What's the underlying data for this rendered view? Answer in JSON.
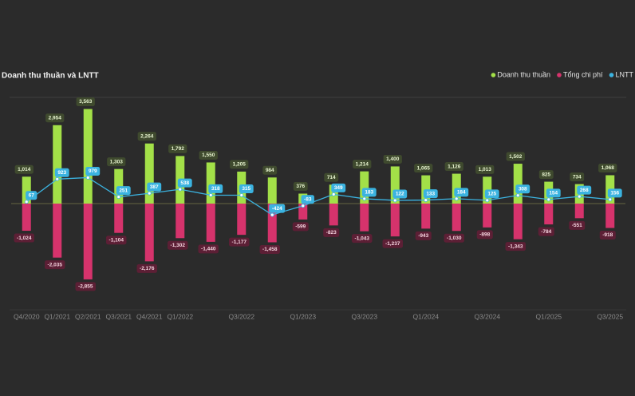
{
  "chart_data": {
    "type": "bar-line",
    "title": "Doanh thu thuần và LNTT",
    "categories": [
      "Q4/2020",
      "Q1/2021",
      "Q2/2021",
      "Q3/2021",
      "Q4/2021",
      "Q1/2022",
      null,
      "Q3/2022",
      null,
      "Q1/2023",
      null,
      "Q3/2023",
      null,
      "Q1/2024",
      null,
      "Q3/2024",
      null,
      "Q1/2025",
      null,
      "Q3/2025"
    ],
    "series": [
      {
        "name": "Doanh thu thuần",
        "color": "#a3e048",
        "type": "bar",
        "values": [
          1014,
          2954,
          3563,
          1303,
          2264,
          1792,
          1550,
          1205,
          984,
          376,
          714,
          1214,
          1400,
          1065,
          1126,
          1013,
          1502,
          825,
          734,
          1068
        ],
        "value_labels": [
          "1,014",
          "2,954",
          "3,563",
          "1,303",
          "2,264",
          "1,792",
          "1,550",
          "1,205",
          "984",
          "376",
          "714",
          "1,214",
          "1,400",
          "1,065",
          "1,126",
          "1,013",
          "1,502",
          "825",
          "734",
          "1,068"
        ]
      },
      {
        "name": "Tổng chi phí",
        "color": "#d6336c",
        "type": "bar",
        "values": [
          -1024,
          -2035,
          -2855,
          -1104,
          -2176,
          -1302,
          -1440,
          -1177,
          -1458,
          -599,
          -823,
          -1043,
          -1237,
          -943,
          -1030,
          -898,
          -1343,
          -784,
          -551,
          -918
        ],
        "value_labels": [
          "-1,024",
          "-2,035",
          "-2,855",
          "-1,104",
          "-2,176",
          "-1,302",
          "-1,440",
          "-1,177",
          "-1,458",
          "-599",
          "-823",
          "-1,043",
          "-1,237",
          "-943",
          "-1,030",
          "-898",
          "-1,343",
          "-784",
          "-551",
          "-918"
        ]
      },
      {
        "name": "LNTT",
        "color": "#3bb3e0",
        "type": "line",
        "values": [
          67,
          923,
          979,
          251,
          387,
          538,
          318,
          315,
          -424,
          -83,
          349,
          183,
          122,
          133,
          184,
          125,
          308,
          154,
          268,
          156
        ]
      }
    ],
    "ylim": [
      -4000,
      4000
    ]
  }
}
